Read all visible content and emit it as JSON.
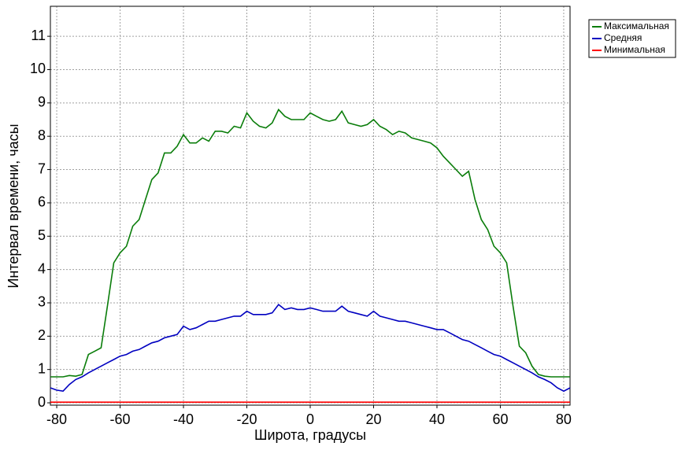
{
  "chart_data": {
    "type": "line",
    "xlabel": "Широта, градусы",
    "ylabel": "Интервал времени, часы",
    "x": [
      -82,
      -80,
      -78,
      -76,
      -74,
      -72,
      -70,
      -68,
      -66,
      -64,
      -62,
      -60,
      -58,
      -56,
      -54,
      -52,
      -50,
      -48,
      -46,
      -44,
      -42,
      -40,
      -38,
      -36,
      -34,
      -32,
      -30,
      -28,
      -26,
      -24,
      -22,
      -20,
      -18,
      -16,
      -14,
      -12,
      -10,
      -8,
      -6,
      -4,
      -2,
      0,
      2,
      4,
      6,
      8,
      10,
      12,
      14,
      16,
      18,
      20,
      22,
      24,
      26,
      28,
      30,
      32,
      34,
      36,
      38,
      40,
      42,
      44,
      46,
      48,
      50,
      52,
      54,
      56,
      58,
      60,
      62,
      64,
      66,
      68,
      70,
      72,
      74,
      76,
      78,
      80,
      82
    ],
    "series": [
      {
        "name": "Максимальная",
        "color": "#0a7d0a",
        "values": [
          0.78,
          0.78,
          0.78,
          0.82,
          0.8,
          0.85,
          1.45,
          1.55,
          1.65,
          2.9,
          4.2,
          4.5,
          4.7,
          5.3,
          5.5,
          6.1,
          6.7,
          6.9,
          7.5,
          7.5,
          7.7,
          8.05,
          7.8,
          7.8,
          7.95,
          7.85,
          8.15,
          8.15,
          8.1,
          8.3,
          8.25,
          8.7,
          8.45,
          8.3,
          8.25,
          8.4,
          8.8,
          8.6,
          8.5,
          8.5,
          8.5,
          8.7,
          8.6,
          8.5,
          8.45,
          8.5,
          8.75,
          8.4,
          8.35,
          8.3,
          8.35,
          8.5,
          8.3,
          8.2,
          8.05,
          8.15,
          8.1,
          7.95,
          7.9,
          7.85,
          7.8,
          7.65,
          7.4,
          7.2,
          7.0,
          6.8,
          6.95,
          6.1,
          5.5,
          5.2,
          4.7,
          4.5,
          4.2,
          2.9,
          1.7,
          1.5,
          1.1,
          0.85,
          0.8,
          0.78,
          0.78,
          0.78,
          0.78
        ]
      },
      {
        "name": "Средняя",
        "color": "#0000c0",
        "values": [
          0.45,
          0.38,
          0.35,
          0.55,
          0.7,
          0.78,
          0.9,
          1.0,
          1.1,
          1.2,
          1.3,
          1.4,
          1.45,
          1.55,
          1.6,
          1.7,
          1.8,
          1.85,
          1.95,
          2.0,
          2.05,
          2.3,
          2.2,
          2.25,
          2.35,
          2.45,
          2.45,
          2.5,
          2.55,
          2.6,
          2.6,
          2.75,
          2.65,
          2.65,
          2.65,
          2.7,
          2.95,
          2.8,
          2.85,
          2.8,
          2.8,
          2.85,
          2.8,
          2.75,
          2.75,
          2.75,
          2.9,
          2.75,
          2.7,
          2.65,
          2.6,
          2.75,
          2.6,
          2.55,
          2.5,
          2.45,
          2.45,
          2.4,
          2.35,
          2.3,
          2.25,
          2.2,
          2.2,
          2.1,
          2.0,
          1.9,
          1.85,
          1.75,
          1.65,
          1.55,
          1.45,
          1.4,
          1.3,
          1.2,
          1.1,
          1.0,
          0.9,
          0.78,
          0.7,
          0.6,
          0.45,
          0.35,
          0.45
        ]
      },
      {
        "name": "Минимальная",
        "color": "#ff0000",
        "values": [
          0.02,
          0.02,
          0.02,
          0.02,
          0.02,
          0.02,
          0.02,
          0.02,
          0.02,
          0.02,
          0.02,
          0.02,
          0.02,
          0.02,
          0.02,
          0.02,
          0.02,
          0.02,
          0.02,
          0.02,
          0.02,
          0.02,
          0.02,
          0.02,
          0.02,
          0.02,
          0.02,
          0.02,
          0.02,
          0.02,
          0.02,
          0.02,
          0.02,
          0.02,
          0.02,
          0.02,
          0.02,
          0.02,
          0.02,
          0.02,
          0.02,
          0.02,
          0.02,
          0.02,
          0.02,
          0.02,
          0.02,
          0.02,
          0.02,
          0.02,
          0.02,
          0.02,
          0.02,
          0.02,
          0.02,
          0.02,
          0.02,
          0.02,
          0.02,
          0.02,
          0.02,
          0.02,
          0.02,
          0.02,
          0.02,
          0.02,
          0.02,
          0.02,
          0.02,
          0.02,
          0.02,
          0.02,
          0.02,
          0.02,
          0.02,
          0.02,
          0.02,
          0.02,
          0.02,
          0.02,
          0.02,
          0.02,
          0.02
        ]
      }
    ],
    "xlim": [
      -82,
      82
    ],
    "xticks": [
      -80,
      -60,
      -40,
      -20,
      0,
      20,
      40,
      60,
      80
    ],
    "ylim": [
      -0.07,
      11.9
    ],
    "yticks": [
      0,
      1,
      2,
      3,
      4,
      5,
      6,
      7,
      8,
      9,
      10,
      11
    ],
    "grid": true,
    "legend": "outside-top-right"
  }
}
